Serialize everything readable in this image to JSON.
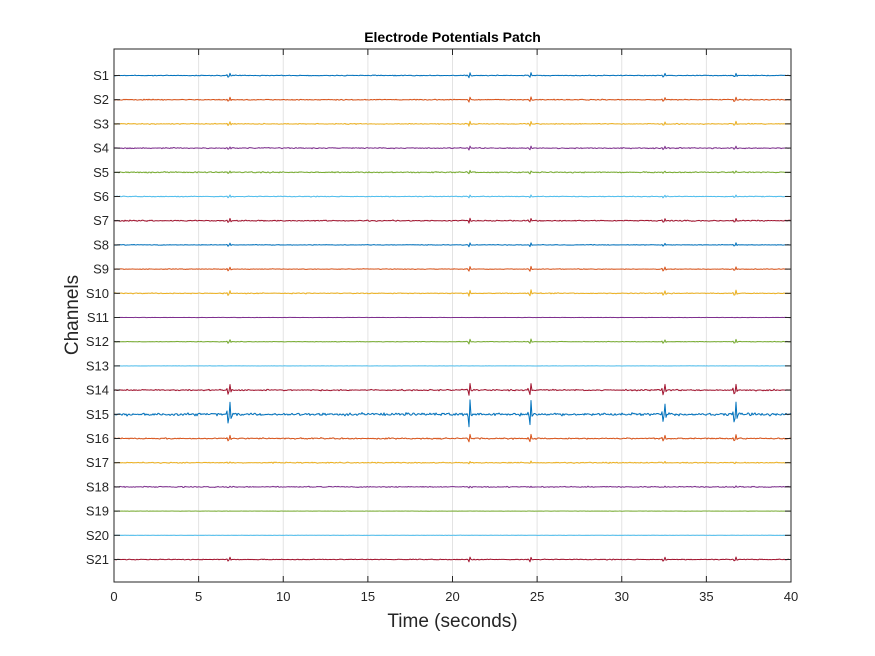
{
  "chart_data": {
    "type": "line",
    "title": "Electrode Potentials Patch",
    "xlabel": "Time (seconds)",
    "ylabel": "Channels",
    "xlim": [
      0,
      40
    ],
    "xticks": [
      0,
      5,
      10,
      15,
      20,
      25,
      30,
      35,
      40
    ],
    "xtick_labels": [
      "0",
      "5",
      "10",
      "15",
      "20",
      "25",
      "30",
      "35",
      "40"
    ],
    "grid": true,
    "event_times": [
      6.8,
      21.0,
      24.6,
      32.5,
      36.7
    ],
    "series": [
      {
        "name": "S1",
        "color": "#0072BD",
        "noise": 0.6,
        "spike": 3.0
      },
      {
        "name": "S2",
        "color": "#D95319",
        "noise": 0.7,
        "spike": 3.0
      },
      {
        "name": "S3",
        "color": "#EDB120",
        "noise": 0.7,
        "spike": 3.0
      },
      {
        "name": "S4",
        "color": "#7E2F8E",
        "noise": 0.8,
        "spike": 2.5
      },
      {
        "name": "S5",
        "color": "#77AC30",
        "noise": 0.9,
        "spike": 2.0
      },
      {
        "name": "S6",
        "color": "#4DBEEE",
        "noise": 0.6,
        "spike": 2.0
      },
      {
        "name": "S7",
        "color": "#A2142F",
        "noise": 0.8,
        "spike": 3.0
      },
      {
        "name": "S8",
        "color": "#0072BD",
        "noise": 0.5,
        "spike": 2.5
      },
      {
        "name": "S9",
        "color": "#D95319",
        "noise": 0.5,
        "spike": 3.0
      },
      {
        "name": "S10",
        "color": "#EDB120",
        "noise": 0.7,
        "spike": 4.0
      },
      {
        "name": "S11",
        "color": "#7E2F8E",
        "noise": 0.2,
        "spike": 0.0
      },
      {
        "name": "S12",
        "color": "#77AC30",
        "noise": 0.4,
        "spike": 3.0
      },
      {
        "name": "S13",
        "color": "#4DBEEE",
        "noise": 0.2,
        "spike": 0.0
      },
      {
        "name": "S14",
        "color": "#A2142F",
        "noise": 1.0,
        "spike": 8.0
      },
      {
        "name": "S15",
        "color": "#0072BD",
        "noise": 2.0,
        "spike": 16.0
      },
      {
        "name": "S16",
        "color": "#D95319",
        "noise": 1.0,
        "spike": 5.0
      },
      {
        "name": "S17",
        "color": "#EDB120",
        "noise": 0.8,
        "spike": 1.5
      },
      {
        "name": "S18",
        "color": "#7E2F8E",
        "noise": 0.8,
        "spike": 1.0
      },
      {
        "name": "S19",
        "color": "#77AC30",
        "noise": 0.2,
        "spike": 0.0
      },
      {
        "name": "S20",
        "color": "#4DBEEE",
        "noise": 0.2,
        "spike": 0.0
      },
      {
        "name": "S21",
        "color": "#A2142F",
        "noise": 0.6,
        "spike": 3.0
      }
    ]
  }
}
